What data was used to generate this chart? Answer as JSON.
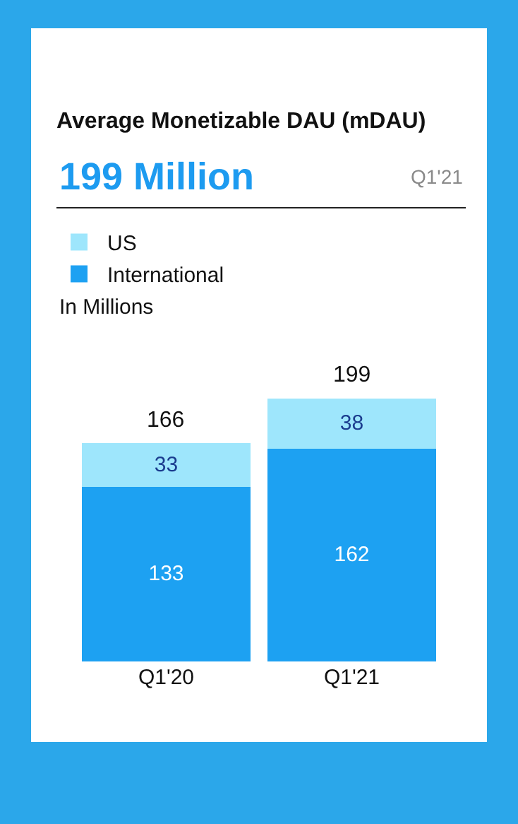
{
  "chart_data": {
    "type": "bar",
    "title": "Average Monetizable DAU (mDAU)",
    "subtitle": "199 Million",
    "annotations": [
      "Q1'21",
      "In Millions"
    ],
    "categories": [
      "Q1'20",
      "Q1'21"
    ],
    "stacked": true,
    "data_labels": true,
    "totals": [
      "166",
      "199"
    ],
    "legend": "top left",
    "series": [
      {
        "name": "International",
        "color": "#1da1f2",
        "values": [
          133,
          162
        ]
      },
      {
        "name": "US",
        "color": "#9ee6fc",
        "values": [
          33,
          38
        ]
      }
    ]
  }
}
